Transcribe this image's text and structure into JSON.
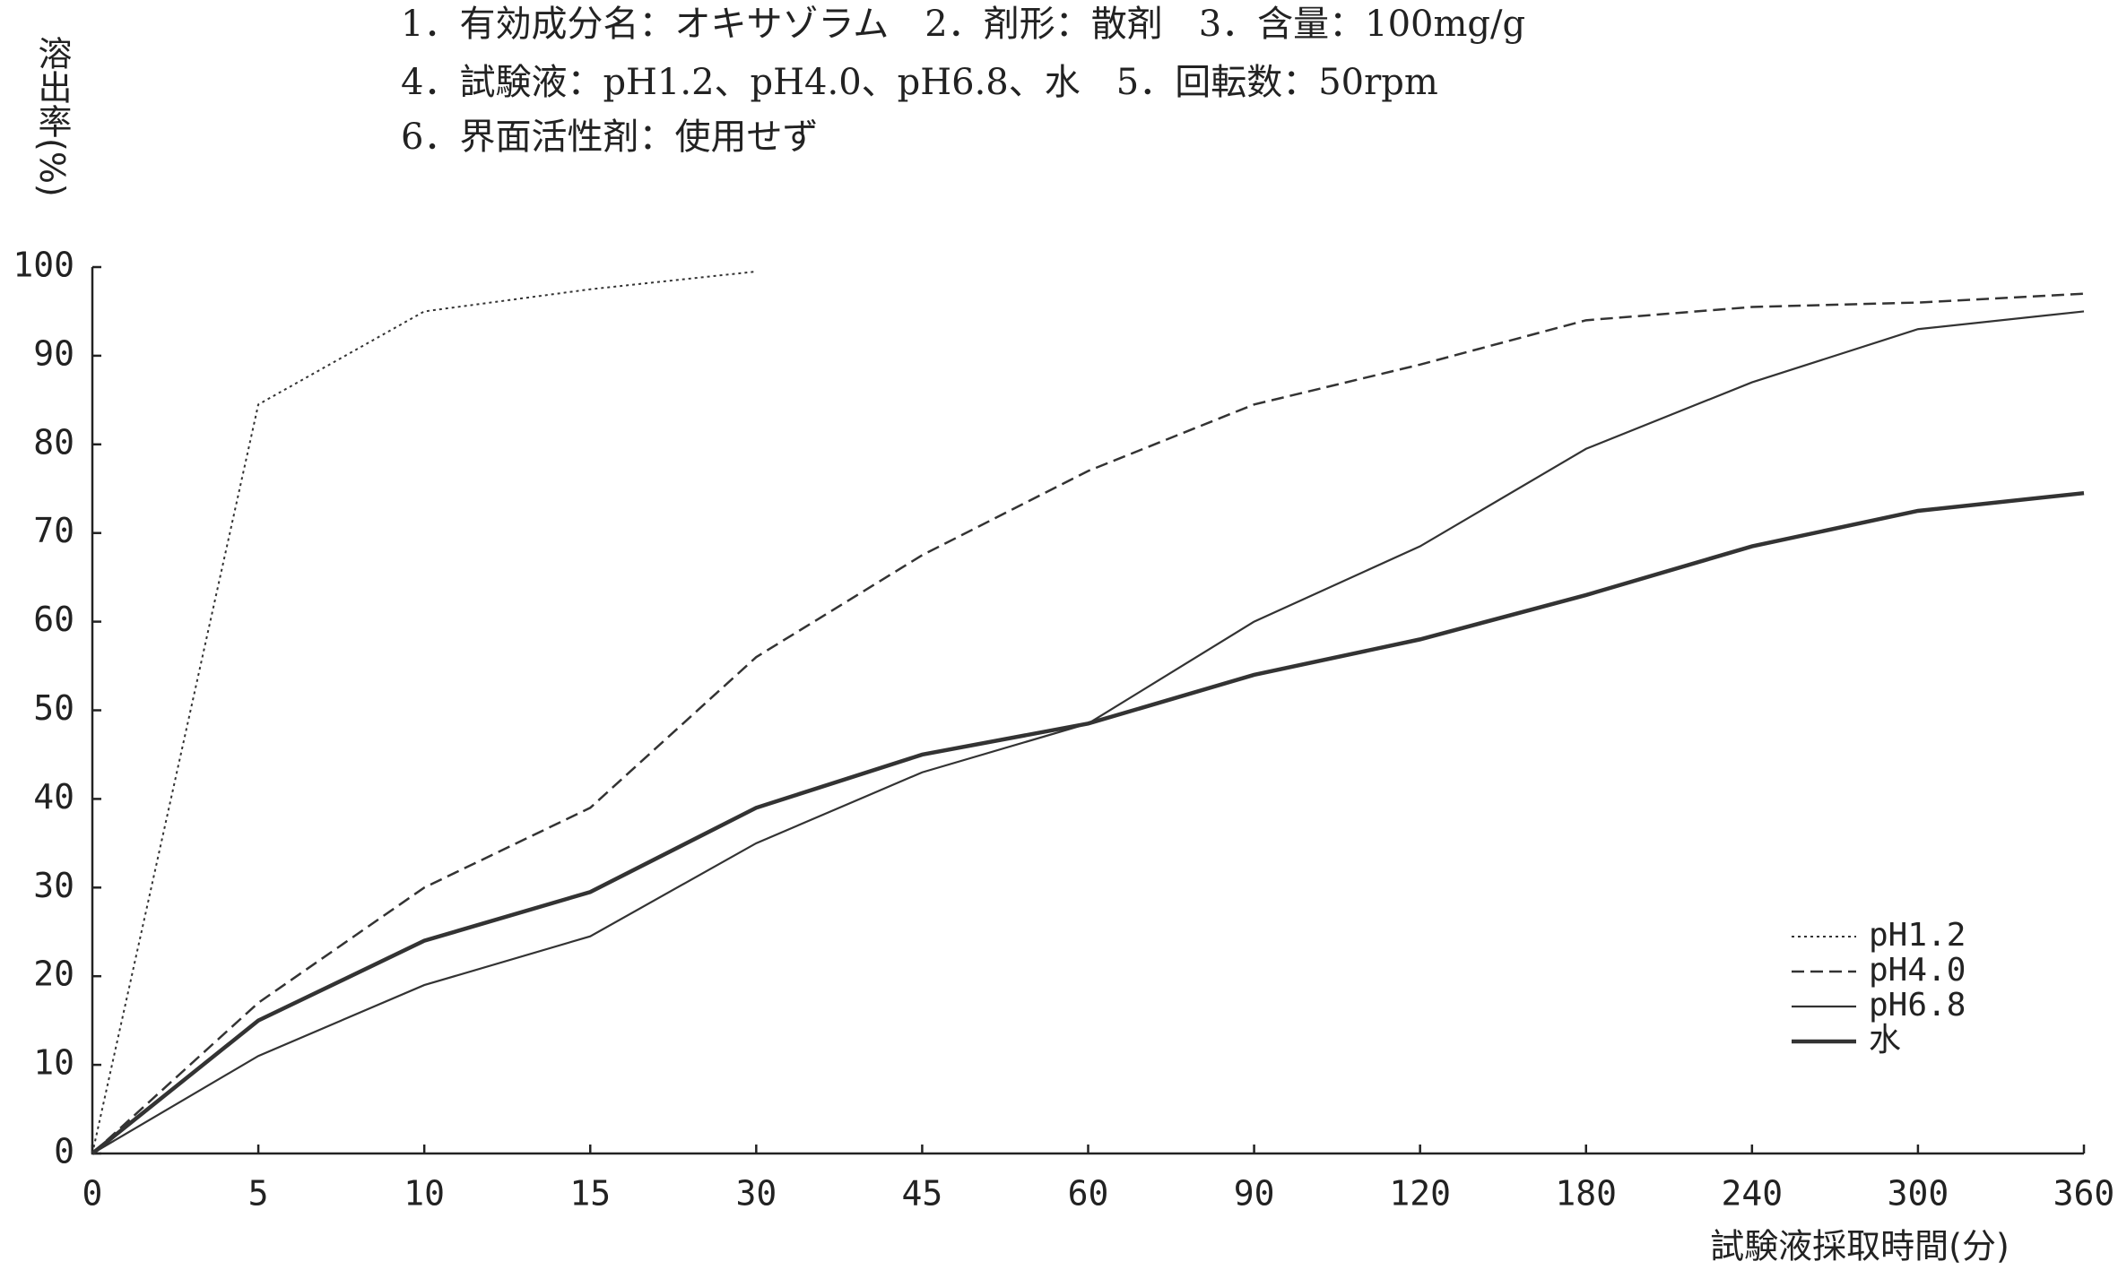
{
  "chart_data": {
    "type": "line",
    "annotations": [
      "1．有効成分名：オキサゾラム　2．剤形：散剤　3．含量：100mg/g",
      "4．試験液：pH1.2、pH4.0、pH6.8、水　5．回転数：50rpm",
      "6．界面活性剤：使用せず"
    ],
    "y_label": "溶出率(%)",
    "x_label": "試験液採取時間(分)",
    "categories": [
      "0",
      "5",
      "10",
      "15",
      "30",
      "45",
      "60",
      "90",
      "120",
      "180",
      "240",
      "300",
      "360"
    ],
    "ylim": [
      0,
      100
    ],
    "yticks": [
      0,
      10,
      20,
      30,
      40,
      50,
      60,
      70,
      80,
      90,
      100
    ],
    "legend": "lower right",
    "series": [
      {
        "name": "pH1.2",
        "color": "#333333",
        "style": "dotted",
        "values": [
          0,
          84.5,
          95,
          97.5,
          99.5,
          null,
          null,
          null,
          null,
          null,
          null,
          null,
          null
        ]
      },
      {
        "name": "pH4.0",
        "color": "#333333",
        "style": "dashed",
        "values": [
          0,
          17,
          30,
          39,
          56,
          67.5,
          77,
          84.5,
          89,
          94,
          95.5,
          96,
          97
        ]
      },
      {
        "name": "pH6.8",
        "color": "#333333",
        "style": "solid",
        "values": [
          0,
          11,
          19,
          24.5,
          35,
          43,
          48.5,
          60,
          68.5,
          79.5,
          87,
          93,
          95
        ]
      },
      {
        "name": "水",
        "color": "#333333",
        "style": "thick",
        "values": [
          0,
          15,
          24,
          29.5,
          39,
          45,
          48.5,
          54,
          58,
          63,
          68.5,
          72.5,
          74.5
        ]
      }
    ]
  }
}
